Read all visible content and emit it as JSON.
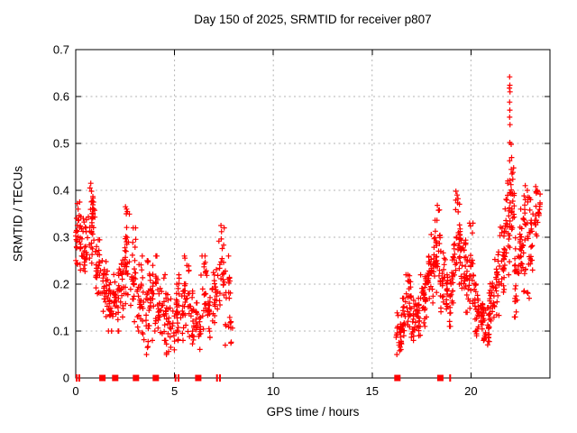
{
  "title": "Day 150 of 2025, SRMTID for receiver p807",
  "colors": {
    "marker": "#ff0000",
    "grid": "#b3b3b3",
    "axis": "#000000",
    "background": "#ffffff",
    "text": "#000000"
  },
  "chart_data": {
    "type": "scatter",
    "title": "Day 150 of 2025, SRMTID for receiver p807",
    "xlabel": "GPS time / hours",
    "ylabel": "SRMTID / TECUs",
    "xlim": [
      0,
      24
    ],
    "ylim": [
      0,
      0.7
    ],
    "xtick_values": [
      0,
      5,
      10,
      15,
      20
    ],
    "xtick_labels": [
      "0",
      "5",
      "10",
      "15",
      "20"
    ],
    "ytick_values": [
      0,
      0.1,
      0.2,
      0.3,
      0.4,
      0.5,
      0.6,
      0.7
    ],
    "ytick_labels": [
      "0",
      "0.1",
      "0.2",
      "0.3",
      "0.4",
      "0.5",
      "0.6",
      "0.7"
    ],
    "grid": true,
    "legend_position": "none",
    "marker_style": "plus",
    "series_name": "SRMTID for receiver p807",
    "data_gaps_hours": [
      [
        8.0,
        16.2
      ],
      [
        23.6,
        24.0
      ]
    ],
    "density_segments_comment": "dense scatter approximated as [t_start,t_end,value_min,value_max,point_count]",
    "density_segments": [
      [
        0.0,
        0.3,
        0.23,
        0.375,
        30
      ],
      [
        0.3,
        0.6,
        0.22,
        0.34,
        28
      ],
      [
        0.6,
        1.0,
        0.22,
        0.4,
        34
      ],
      [
        1.0,
        1.3,
        0.17,
        0.3,
        26
      ],
      [
        1.3,
        1.6,
        0.13,
        0.25,
        26
      ],
      [
        1.6,
        1.9,
        0.1,
        0.22,
        26
      ],
      [
        1.9,
        2.2,
        0.1,
        0.23,
        26
      ],
      [
        2.2,
        2.45,
        0.13,
        0.28,
        22
      ],
      [
        2.45,
        2.75,
        0.15,
        0.36,
        30
      ],
      [
        2.75,
        3.05,
        0.12,
        0.32,
        26
      ],
      [
        3.05,
        3.35,
        0.08,
        0.26,
        24
      ],
      [
        3.35,
        3.65,
        0.05,
        0.25,
        24
      ],
      [
        3.65,
        3.95,
        0.08,
        0.24,
        24
      ],
      [
        3.95,
        4.25,
        0.1,
        0.26,
        24
      ],
      [
        4.25,
        4.55,
        0.08,
        0.24,
        22
      ],
      [
        4.55,
        4.85,
        0.05,
        0.18,
        22
      ],
      [
        4.85,
        5.15,
        0.06,
        0.2,
        22
      ],
      [
        5.15,
        5.45,
        0.08,
        0.22,
        22
      ],
      [
        5.45,
        5.75,
        0.09,
        0.26,
        22
      ],
      [
        5.75,
        6.05,
        0.06,
        0.22,
        22
      ],
      [
        6.05,
        6.35,
        0.05,
        0.16,
        22
      ],
      [
        6.35,
        6.65,
        0.08,
        0.26,
        22
      ],
      [
        6.65,
        6.95,
        0.08,
        0.2,
        20
      ],
      [
        6.95,
        7.25,
        0.1,
        0.25,
        20
      ],
      [
        7.25,
        7.55,
        0.12,
        0.32,
        22
      ],
      [
        7.55,
        7.85,
        0.07,
        0.26,
        18
      ],
      [
        7.85,
        7.95,
        0.07,
        0.12,
        6
      ],
      [
        16.2,
        16.45,
        0.05,
        0.14,
        20
      ],
      [
        16.45,
        16.7,
        0.07,
        0.17,
        22
      ],
      [
        16.7,
        16.95,
        0.09,
        0.22,
        24
      ],
      [
        16.95,
        17.2,
        0.08,
        0.18,
        22
      ],
      [
        17.2,
        17.45,
        0.09,
        0.17,
        22
      ],
      [
        17.45,
        17.7,
        0.11,
        0.22,
        22
      ],
      [
        17.7,
        17.95,
        0.13,
        0.27,
        24
      ],
      [
        17.95,
        18.2,
        0.16,
        0.33,
        24
      ],
      [
        18.2,
        18.45,
        0.18,
        0.36,
        26
      ],
      [
        18.45,
        18.7,
        0.13,
        0.27,
        22
      ],
      [
        18.7,
        18.95,
        0.11,
        0.22,
        22
      ],
      [
        18.95,
        19.2,
        0.16,
        0.33,
        24
      ],
      [
        19.2,
        19.45,
        0.2,
        0.39,
        26
      ],
      [
        19.45,
        19.7,
        0.18,
        0.35,
        24
      ],
      [
        19.7,
        19.95,
        0.14,
        0.3,
        22
      ],
      [
        19.95,
        20.2,
        0.12,
        0.33,
        22
      ],
      [
        20.2,
        20.45,
        0.09,
        0.2,
        26
      ],
      [
        20.45,
        20.7,
        0.08,
        0.17,
        24
      ],
      [
        20.7,
        20.95,
        0.07,
        0.15,
        22
      ],
      [
        20.95,
        21.2,
        0.1,
        0.22,
        22
      ],
      [
        21.2,
        21.45,
        0.13,
        0.28,
        22
      ],
      [
        21.45,
        21.7,
        0.17,
        0.33,
        24
      ],
      [
        21.7,
        21.95,
        0.22,
        0.42,
        26
      ],
      [
        21.95,
        22.2,
        0.27,
        0.46,
        28
      ],
      [
        22.2,
        22.45,
        0.13,
        0.33,
        24
      ],
      [
        22.45,
        22.7,
        0.22,
        0.36,
        28
      ],
      [
        22.7,
        22.95,
        0.17,
        0.4,
        24
      ],
      [
        22.95,
        23.2,
        0.22,
        0.38,
        20
      ],
      [
        23.2,
        23.45,
        0.28,
        0.4,
        18
      ],
      [
        23.45,
        23.55,
        0.33,
        0.4,
        6
      ]
    ],
    "spike_points_comment": "isolated vertical run of points near hour 22 reaching the 0.64 maximum",
    "spike_points": [
      [
        21.96,
        0.642
      ],
      [
        21.97,
        0.624
      ],
      [
        21.95,
        0.618
      ],
      [
        21.98,
        0.61
      ],
      [
        21.96,
        0.588
      ],
      [
        21.97,
        0.571
      ],
      [
        21.96,
        0.556
      ],
      [
        21.98,
        0.54
      ],
      [
        21.97,
        0.502
      ],
      [
        22.04,
        0.498
      ],
      [
        21.96,
        0.463
      ],
      [
        22.06,
        0.47
      ],
      [
        21.97,
        0.421
      ],
      [
        22.08,
        0.435
      ]
    ],
    "notable_points": [
      [
        0.72,
        0.405
      ],
      [
        0.76,
        0.415
      ],
      [
        0.8,
        0.398
      ],
      [
        0.08,
        0.372
      ],
      [
        0.12,
        0.36
      ],
      [
        2.52,
        0.365
      ],
      [
        2.56,
        0.35
      ],
      [
        7.35,
        0.325
      ],
      [
        7.38,
        0.312
      ],
      [
        18.3,
        0.368
      ],
      [
        19.24,
        0.398
      ],
      [
        19.3,
        0.39
      ],
      [
        22.75,
        0.41
      ],
      [
        23.28,
        0.408
      ],
      [
        23.35,
        0.4
      ],
      [
        23.5,
        0.392
      ]
    ],
    "zero_value_marks": {
      "comment": "clusters of points plotted at exactly 0 TECUs on the time axis",
      "thin_hours": [
        0.05,
        0.18,
        5.05,
        5.2,
        7.15,
        7.3,
        18.95
      ],
      "square_hours": [
        1.35,
        2.0,
        3.05,
        4.05,
        6.2,
        16.28,
        18.45
      ]
    }
  }
}
